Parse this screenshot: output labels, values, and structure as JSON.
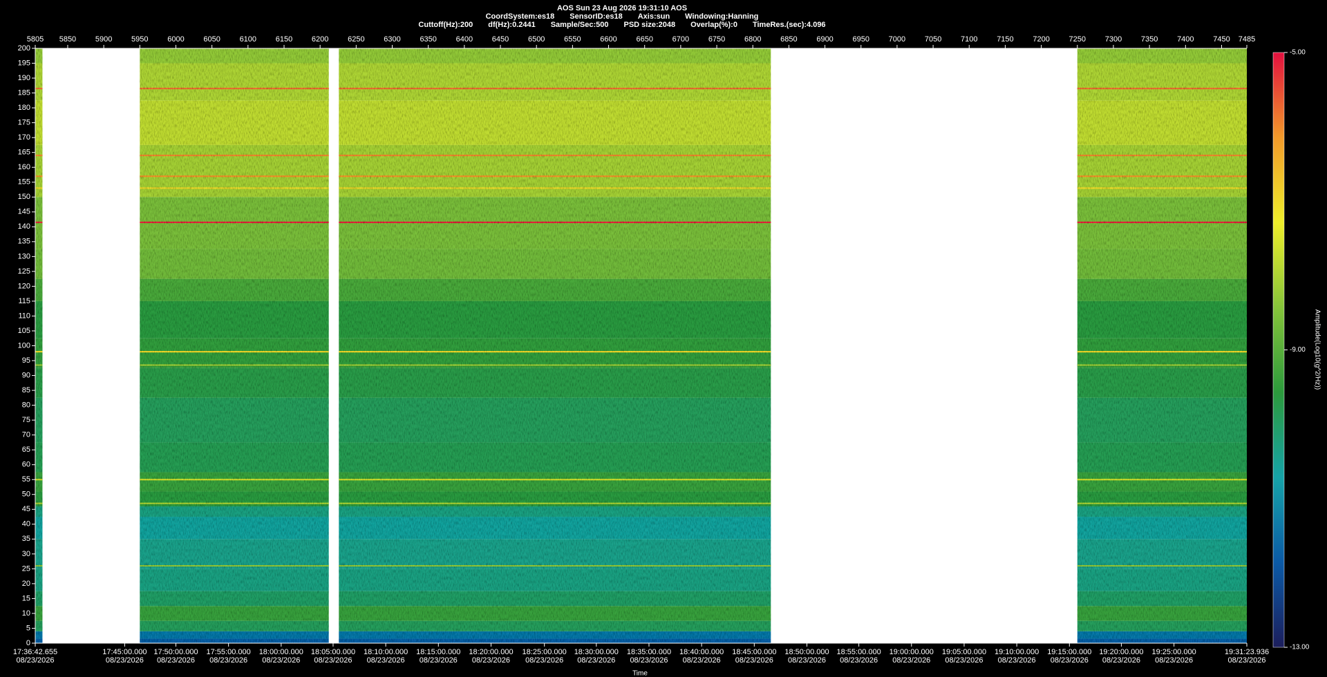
{
  "chart_data": {
    "type": "heatmap",
    "title": "AOS  Sun 23 Aug 2026 19:31:10  AOS",
    "info": [
      [
        "CoordSystem:es18",
        "SensorID:es18",
        "Axis:sun",
        "Windowing:Hanning"
      ],
      [
        "Cuttoff(Hz):200",
        "df(Hz):0.2441",
        "Sample/Sec:500",
        "PSD size:2048",
        "Overlap(%):0",
        "TimeRes.(sec):4.096"
      ]
    ],
    "xlabel": "Time",
    "xlim": [
      5805,
      7485
    ],
    "xticks": [
      5805,
      5850,
      5900,
      5950,
      6000,
      6050,
      6100,
      6150,
      6200,
      6250,
      6300,
      6350,
      6400,
      6450,
      6500,
      6550,
      6600,
      6650,
      6700,
      6750,
      6800,
      6850,
      6900,
      6950,
      7000,
      7050,
      7100,
      7150,
      7200,
      7250,
      7300,
      7350,
      7400,
      7450,
      7485
    ],
    "x2ticks": [
      {
        "value": 5805,
        "label": "17:36:42.655",
        "date": "08/23/2026"
      },
      {
        "value": 5929,
        "label": "17:45:00.000",
        "date": "08/23/2026"
      },
      {
        "value": 6000,
        "label": "17:50:00.000",
        "date": "08/23/2026"
      },
      {
        "value": 6073,
        "label": "17:55:00.000",
        "date": "08/23/2026"
      },
      {
        "value": 6146,
        "label": "18:00:00.000",
        "date": "08/23/2026"
      },
      {
        "value": 6218,
        "label": "18:05:00.000",
        "date": "08/23/2026"
      },
      {
        "value": 6291,
        "label": "18:10:00.000",
        "date": "08/23/2026"
      },
      {
        "value": 6364,
        "label": "18:15:00.000",
        "date": "08/23/2026"
      },
      {
        "value": 6437,
        "label": "18:20:00.000",
        "date": "08/23/2026"
      },
      {
        "value": 6511,
        "label": "18:25:00.000",
        "date": "08/23/2026"
      },
      {
        "value": 6583,
        "label": "18:30:00.000",
        "date": "08/23/2026"
      },
      {
        "value": 6656,
        "label": "18:35:00.000",
        "date": "08/23/2026"
      },
      {
        "value": 6729,
        "label": "18:40:00.000",
        "date": "08/23/2026"
      },
      {
        "value": 6802,
        "label": "18:45:00.000",
        "date": "08/23/2026"
      },
      {
        "value": 6875,
        "label": "18:50:00.000",
        "date": "08/23/2026"
      },
      {
        "value": 6947,
        "label": "18:55:00.000",
        "date": "08/23/2026"
      },
      {
        "value": 7020,
        "label": "19:00:00.000",
        "date": "08/23/2026"
      },
      {
        "value": 7093,
        "label": "19:05:00.000",
        "date": "08/23/2026"
      },
      {
        "value": 7166,
        "label": "19:10:00.000",
        "date": "08/23/2026"
      },
      {
        "value": 7239,
        "label": "19:15:00.000",
        "date": "08/23/2026"
      },
      {
        "value": 7311,
        "label": "19:20:00.000",
        "date": "08/23/2026"
      },
      {
        "value": 7384,
        "label": "19:25:00.000",
        "date": "08/23/2026"
      },
      {
        "value": 7485,
        "label": "19:31:23.936",
        "date": "08/23/2026"
      }
    ],
    "ylim": [
      0,
      200
    ],
    "yticks": [
      200,
      195,
      190,
      185,
      180,
      175,
      170,
      165,
      160,
      155,
      150,
      145,
      140,
      135,
      130,
      125,
      120,
      115,
      110,
      105,
      100,
      95,
      90,
      85,
      80,
      75,
      70,
      65,
      60,
      55,
      50,
      45,
      40,
      35,
      30,
      25,
      20,
      15,
      10,
      5,
      0
    ],
    "colorbar": {
      "label": "Amplitude(Log10(g^2/Hz))",
      "lim": [
        -13,
        -5
      ],
      "ticks": [
        {
          "value": -5,
          "label": "-5.00"
        },
        {
          "value": -9,
          "label": "-9.00"
        },
        {
          "value": -13,
          "label": "-13.00"
        }
      ],
      "colormap": [
        "#1c1e5c",
        "#0b5aa6",
        "#16a3a8",
        "#2c9a3c",
        "#86c43a",
        "#eeee2a",
        "#f29a2a",
        "#e2103e"
      ]
    },
    "segments": [
      [
        5805,
        5815
      ],
      [
        5950,
        6212
      ],
      [
        6226,
        6825
      ],
      [
        7250,
        7485
      ]
    ],
    "profile": {
      "freq": [
        0,
        3,
        5,
        10,
        15,
        20,
        30,
        40,
        45,
        47,
        55,
        60,
        75,
        90,
        95,
        110,
        120,
        125,
        140,
        160,
        175,
        190,
        200
      ],
      "amplitude": [
        -11.8,
        -11.4,
        -9.9,
        -9.4,
        -10.0,
        -10.3,
        -10.4,
        -10.6,
        -10.3,
        -9.6,
        -9.4,
        -9.8,
        -9.9,
        -9.7,
        -9.5,
        -9.6,
        -9.2,
        -8.7,
        -8.6,
        -8.1,
        -7.8,
        -8.0,
        -8.3
      ]
    },
    "lines": [
      {
        "freq": 186.5,
        "amplitude": -5.8
      },
      {
        "freq": 164,
        "amplitude": -6.0
      },
      {
        "freq": 157,
        "amplitude": -6.1
      },
      {
        "freq": 153,
        "amplitude": -7.0
      },
      {
        "freq": 141.5,
        "amplitude": -5.2
      },
      {
        "freq": 98,
        "amplitude": -7.0
      },
      {
        "freq": 93.5,
        "amplitude": -8.2
      },
      {
        "freq": 55,
        "amplitude": -7.6
      },
      {
        "freq": 47,
        "amplitude": -8.0
      },
      {
        "freq": 26,
        "amplitude": -8.3
      }
    ]
  }
}
